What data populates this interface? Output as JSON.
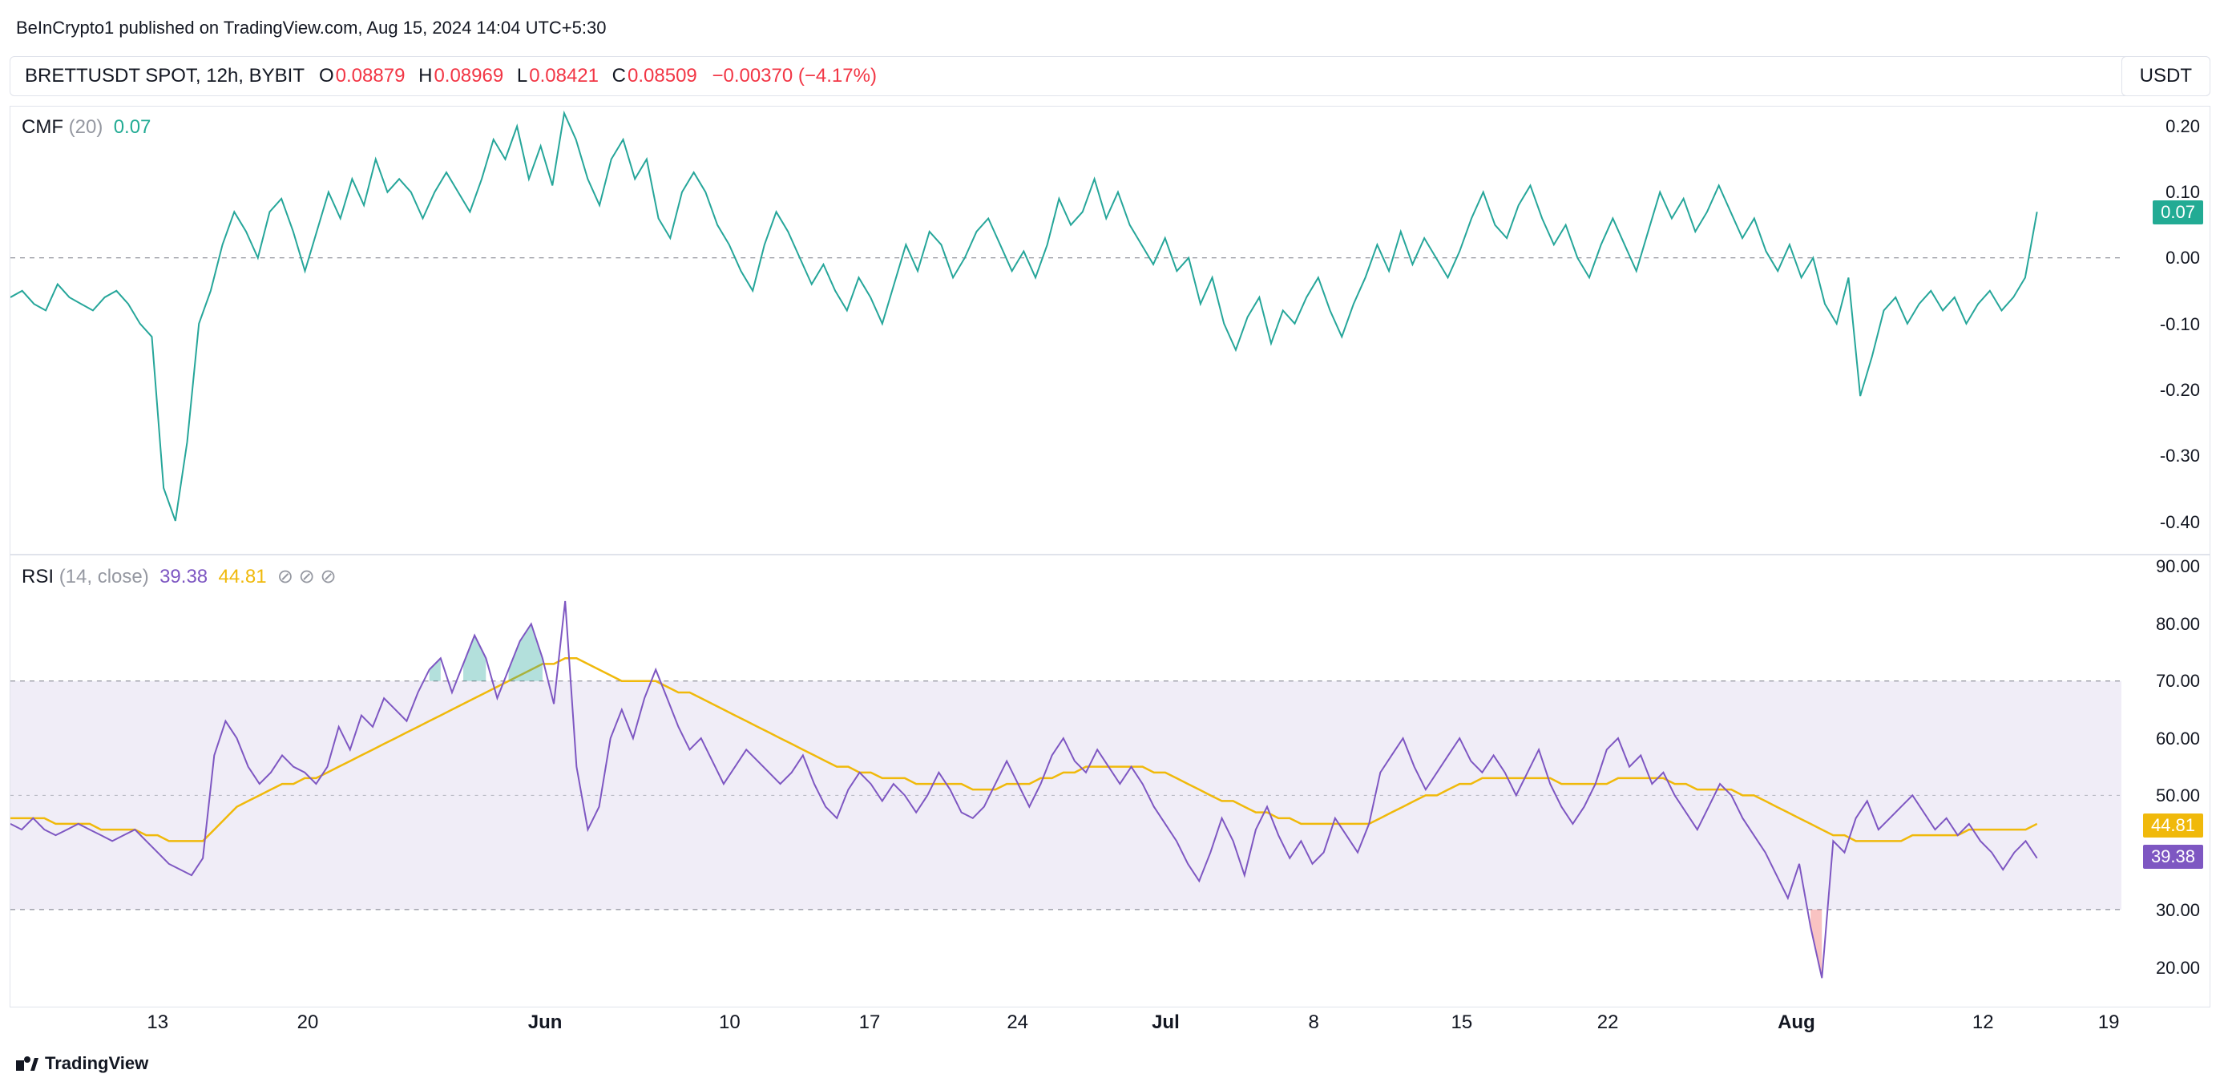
{
  "header": {
    "publisher": "BeInCrypto1 published on TradingView.com, Aug 15, 2024 14:04 UTC+5:30"
  },
  "symbol_bar": {
    "symbol": "BRETTUSDT SPOT, 12h, BYBIT",
    "O_label": "O",
    "O": "0.08879",
    "H_label": "H",
    "H": "0.08969",
    "L_label": "L",
    "L": "0.08421",
    "C_label": "C",
    "C": "0.08509",
    "change": "−0.00370 (−4.17%)",
    "quote": "USDT"
  },
  "cmf_panel": {
    "label_prefix": "CMF",
    "label_params": "(20)",
    "value": "0.07",
    "line_color": "#26a69a",
    "zero_line_color": "#787b86",
    "background_color": "#ffffff",
    "y_ticks": [
      0.2,
      0.1,
      0.0,
      -0.1,
      -0.2,
      -0.3,
      -0.4
    ],
    "ylim": [
      -0.45,
      0.23
    ],
    "badge": {
      "text": "0.07",
      "bg": "#22ab94"
    },
    "series": [
      -0.06,
      -0.05,
      -0.07,
      -0.08,
      -0.04,
      -0.06,
      -0.07,
      -0.08,
      -0.06,
      -0.05,
      -0.07,
      -0.1,
      -0.12,
      -0.35,
      -0.4,
      -0.28,
      -0.1,
      -0.05,
      0.02,
      0.07,
      0.04,
      0.0,
      0.07,
      0.09,
      0.04,
      -0.02,
      0.04,
      0.1,
      0.06,
      0.12,
      0.08,
      0.15,
      0.1,
      0.12,
      0.1,
      0.06,
      0.1,
      0.13,
      0.1,
      0.07,
      0.12,
      0.18,
      0.15,
      0.2,
      0.12,
      0.17,
      0.11,
      0.22,
      0.18,
      0.12,
      0.08,
      0.15,
      0.18,
      0.12,
      0.15,
      0.06,
      0.03,
      0.1,
      0.13,
      0.1,
      0.05,
      0.02,
      -0.02,
      -0.05,
      0.02,
      0.07,
      0.04,
      0.0,
      -0.04,
      -0.01,
      -0.05,
      -0.08,
      -0.03,
      -0.06,
      -0.1,
      -0.04,
      0.02,
      -0.02,
      0.04,
      0.02,
      -0.03,
      0.0,
      0.04,
      0.06,
      0.02,
      -0.02,
      0.01,
      -0.03,
      0.02,
      0.09,
      0.05,
      0.07,
      0.12,
      0.06,
      0.1,
      0.05,
      0.02,
      -0.01,
      0.03,
      -0.02,
      0.0,
      -0.07,
      -0.03,
      -0.1,
      -0.14,
      -0.09,
      -0.06,
      -0.13,
      -0.08,
      -0.1,
      -0.06,
      -0.03,
      -0.08,
      -0.12,
      -0.07,
      -0.03,
      0.02,
      -0.02,
      0.04,
      -0.01,
      0.03,
      0.0,
      -0.03,
      0.01,
      0.06,
      0.1,
      0.05,
      0.03,
      0.08,
      0.11,
      0.06,
      0.02,
      0.05,
      0.0,
      -0.03,
      0.02,
      0.06,
      0.02,
      -0.02,
      0.04,
      0.1,
      0.06,
      0.09,
      0.04,
      0.07,
      0.11,
      0.07,
      0.03,
      0.06,
      0.01,
      -0.02,
      0.02,
      -0.03,
      0.0,
      -0.07,
      -0.1,
      -0.03,
      -0.21,
      -0.15,
      -0.08,
      -0.06,
      -0.1,
      -0.07,
      -0.05,
      -0.08,
      -0.06,
      -0.1,
      -0.07,
      -0.05,
      -0.08,
      -0.06,
      -0.03,
      0.07
    ]
  },
  "rsi_panel": {
    "label_prefix": "RSI",
    "label_params": "(14, close)",
    "value1": "39.38",
    "value2": "44.81",
    "circles": "⊘ ⊘ ⊘",
    "rsi_color": "#7e57c2",
    "ma_color": "#f0b90b",
    "band_fill": "#f0edf7",
    "band_line_color": "#787b86",
    "mid_line_color": "#b2b5be",
    "y_ticks": [
      90.0,
      80.0,
      70.0,
      60.0,
      50.0,
      30.0,
      20.0
    ],
    "ylim": [
      13,
      92
    ],
    "upper_band": 70,
    "lower_band": 30,
    "mid_band": 50,
    "badge1": {
      "text": "44.81",
      "bg": "#f0b90b"
    },
    "badge2": {
      "text": "39.38",
      "bg": "#7e57c2"
    },
    "rsi_series": [
      45,
      44,
      46,
      44,
      43,
      44,
      45,
      44,
      43,
      42,
      43,
      44,
      42,
      40,
      38,
      37,
      36,
      39,
      57,
      63,
      60,
      55,
      52,
      54,
      57,
      55,
      54,
      52,
      55,
      62,
      58,
      64,
      62,
      67,
      65,
      63,
      68,
      72,
      74,
      68,
      73,
      78,
      74,
      67,
      72,
      77,
      80,
      74,
      66,
      84,
      55,
      44,
      48,
      60,
      65,
      60,
      67,
      72,
      67,
      62,
      58,
      60,
      56,
      52,
      55,
      58,
      56,
      54,
      52,
      54,
      57,
      52,
      48,
      46,
      51,
      54,
      52,
      49,
      52,
      50,
      47,
      50,
      54,
      51,
      47,
      46,
      48,
      52,
      56,
      52,
      48,
      52,
      57,
      60,
      56,
      54,
      58,
      55,
      52,
      55,
      52,
      48,
      45,
      42,
      38,
      35,
      40,
      46,
      42,
      36,
      44,
      48,
      43,
      39,
      42,
      38,
      40,
      46,
      43,
      40,
      45,
      54,
      57,
      60,
      55,
      51,
      54,
      57,
      60,
      56,
      54,
      57,
      54,
      50,
      54,
      58,
      52,
      48,
      45,
      48,
      52,
      58,
      60,
      55,
      57,
      52,
      54,
      50,
      47,
      44,
      48,
      52,
      50,
      46,
      43,
      40,
      36,
      32,
      38,
      27,
      18,
      42,
      40,
      46,
      49,
      44,
      46,
      48,
      50,
      47,
      44,
      46,
      43,
      45,
      42,
      40,
      37,
      40,
      42,
      39
    ],
    "ma_series": [
      46,
      46,
      46,
      46,
      45,
      45,
      45,
      45,
      44,
      44,
      44,
      44,
      43,
      43,
      42,
      42,
      42,
      42,
      44,
      46,
      48,
      49,
      50,
      51,
      52,
      52,
      53,
      53,
      54,
      55,
      56,
      57,
      58,
      59,
      60,
      61,
      62,
      63,
      64,
      65,
      66,
      67,
      68,
      69,
      70,
      71,
      72,
      73,
      73,
      74,
      74,
      73,
      72,
      71,
      70,
      70,
      70,
      70,
      69,
      68,
      68,
      67,
      66,
      65,
      64,
      63,
      62,
      61,
      60,
      59,
      58,
      57,
      56,
      55,
      55,
      54,
      54,
      53,
      53,
      53,
      52,
      52,
      52,
      52,
      52,
      51,
      51,
      51,
      52,
      52,
      52,
      53,
      53,
      54,
      54,
      55,
      55,
      55,
      55,
      55,
      55,
      54,
      54,
      53,
      52,
      51,
      50,
      49,
      49,
      48,
      47,
      47,
      46,
      46,
      45,
      45,
      45,
      45,
      45,
      45,
      45,
      46,
      47,
      48,
      49,
      50,
      50,
      51,
      52,
      52,
      53,
      53,
      53,
      53,
      53,
      53,
      53,
      52,
      52,
      52,
      52,
      52,
      53,
      53,
      53,
      53,
      53,
      52,
      52,
      51,
      51,
      51,
      51,
      50,
      50,
      49,
      48,
      47,
      46,
      45,
      44,
      43,
      43,
      42,
      42,
      42,
      42,
      42,
      43,
      43,
      43,
      43,
      43,
      44,
      44,
      44,
      44,
      44,
      44,
      45
    ]
  },
  "x_axis": {
    "ticks": [
      {
        "label": "13",
        "pos": 0.073,
        "bold": false
      },
      {
        "label": "20",
        "pos": 0.147,
        "bold": false
      },
      {
        "label": "Jun",
        "pos": 0.264,
        "bold": true
      },
      {
        "label": "10",
        "pos": 0.355,
        "bold": false
      },
      {
        "label": "17",
        "pos": 0.424,
        "bold": false
      },
      {
        "label": "24",
        "pos": 0.497,
        "bold": false
      },
      {
        "label": "Jul",
        "pos": 0.57,
        "bold": true
      },
      {
        "label": "8",
        "pos": 0.643,
        "bold": false
      },
      {
        "label": "15",
        "pos": 0.716,
        "bold": false
      },
      {
        "label": "22",
        "pos": 0.788,
        "bold": false
      },
      {
        "label": "Aug",
        "pos": 0.881,
        "bold": true
      },
      {
        "label": "12",
        "pos": 0.973,
        "bold": false
      },
      {
        "label": "19",
        "pos": 1.035,
        "bold": false
      }
    ]
  },
  "logo": "TradingView"
}
